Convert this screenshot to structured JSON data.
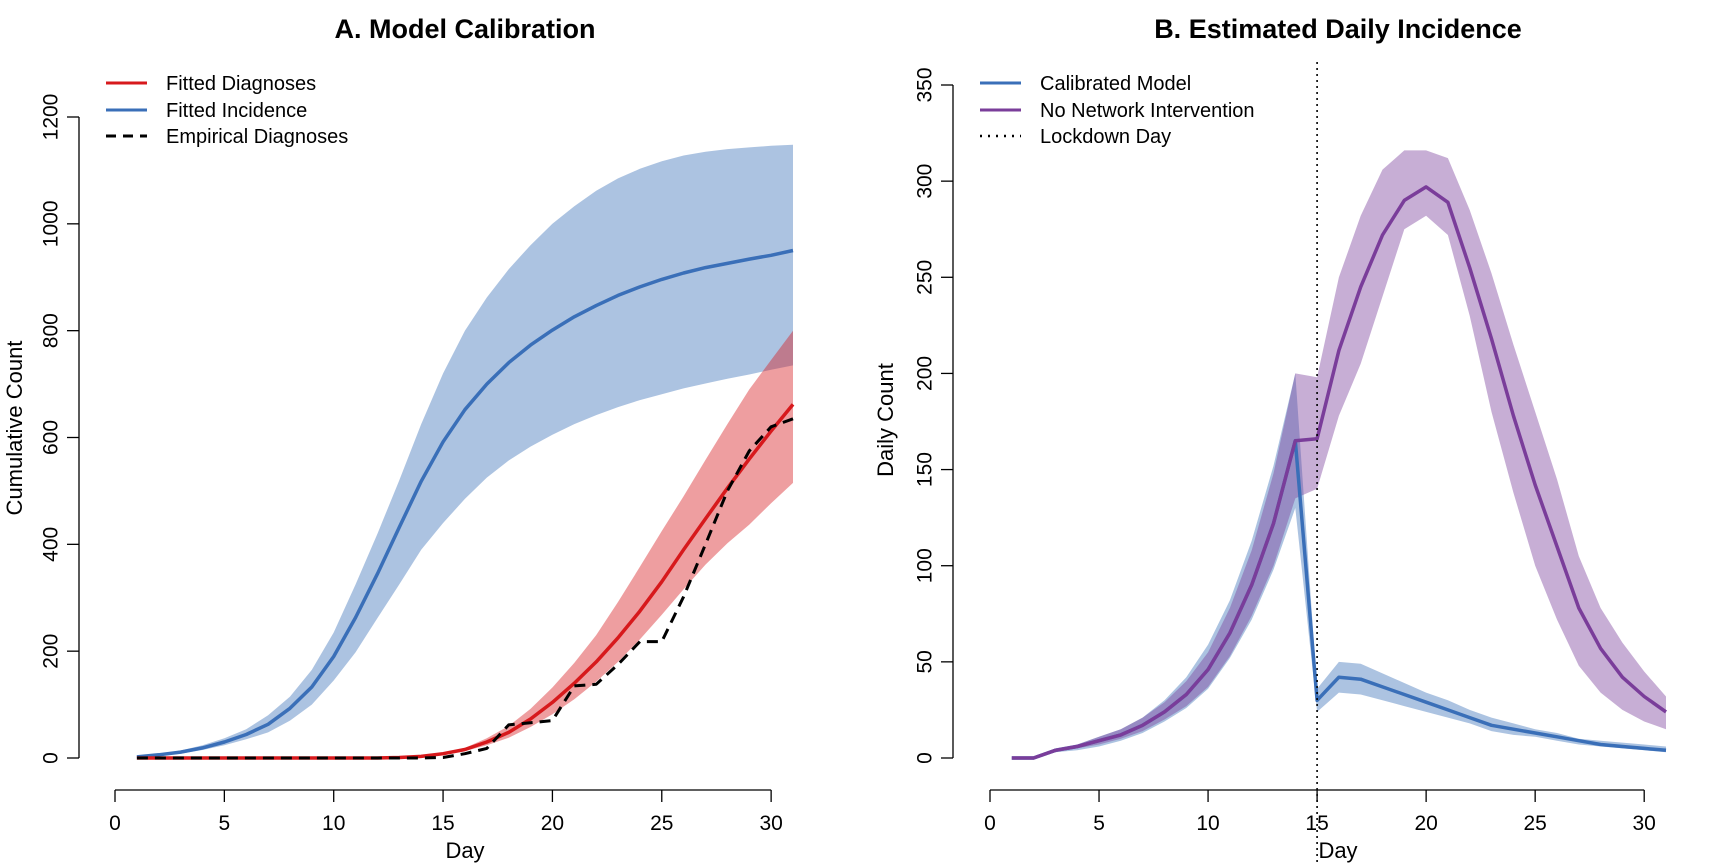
{
  "colors": {
    "diagnoses": "#d7191c",
    "incidence": "#3a6fb8",
    "calibrated": "#3a6fb8",
    "no_intervention": "#7a3d9a",
    "empirical": "#000000"
  },
  "chart_data": [
    {
      "type": "line",
      "title": "A. Model Calibration",
      "xlabel": "Day",
      "ylabel": "Cumulative Count",
      "xlim": [
        0,
        31
      ],
      "ylim": [
        0,
        1200
      ],
      "xticks": [
        0,
        5,
        10,
        15,
        20,
        25,
        30
      ],
      "yticks": [
        0,
        200,
        400,
        600,
        800,
        1000,
        1200
      ],
      "legend_position": "top-left",
      "legend": [
        "Fitted Diagnoses",
        "Fitted Incidence",
        "Empirical Diagnoses"
      ],
      "x": [
        1,
        2,
        3,
        4,
        5,
        6,
        7,
        8,
        9,
        10,
        11,
        12,
        13,
        14,
        15,
        16,
        17,
        18,
        19,
        20,
        21,
        22,
        23,
        24,
        25,
        26,
        27,
        28,
        29,
        30,
        31
      ],
      "series": [
        {
          "name": "Fitted Incidence",
          "color": "#3a6fb8",
          "band": true,
          "values": [
            2,
            6,
            11,
            19,
            30,
            44,
            63,
            93,
            133,
            190,
            263,
            345,
            432,
            518,
            592,
            652,
            700,
            740,
            773,
            801,
            826,
            847,
            866,
            882,
            896,
            908,
            918,
            926,
            934,
            941,
            950
          ],
          "lower": [
            0,
            4,
            8,
            15,
            24,
            35,
            48,
            70,
            100,
            145,
            198,
            262,
            325,
            390,
            440,
            485,
            525,
            557,
            583,
            605,
            625,
            642,
            657,
            670,
            681,
            692,
            701,
            710,
            718,
            727,
            735
          ],
          "upper": [
            3,
            8,
            14,
            24,
            37,
            54,
            80,
            115,
            165,
            235,
            325,
            420,
            520,
            625,
            720,
            800,
            862,
            915,
            960,
            1000,
            1033,
            1062,
            1085,
            1103,
            1117,
            1128,
            1135,
            1140,
            1143,
            1146,
            1148
          ]
        },
        {
          "name": "Fitted Diagnoses",
          "color": "#d7191c",
          "band": true,
          "values": [
            0,
            0,
            0,
            0,
            0,
            0,
            0,
            0,
            0,
            0,
            0,
            0,
            1,
            3,
            8,
            16,
            30,
            48,
            73,
            104,
            140,
            180,
            225,
            275,
            330,
            390,
            448,
            505,
            560,
            612,
            662
          ],
          "lower": [
            0,
            0,
            0,
            0,
            0,
            0,
            0,
            0,
            0,
            0,
            0,
            0,
            1,
            2,
            6,
            13,
            24,
            38,
            58,
            82,
            110,
            143,
            180,
            222,
            268,
            316,
            362,
            402,
            437,
            477,
            515
          ],
          "upper": [
            0,
            0,
            0,
            0,
            0,
            0,
            0,
            0,
            0,
            0,
            0,
            0,
            2,
            4,
            10,
            19,
            37,
            60,
            92,
            132,
            178,
            230,
            292,
            358,
            425,
            490,
            558,
            625,
            690,
            745,
            800
          ]
        },
        {
          "name": "Empirical Diagnoses",
          "color": "#000000",
          "dashed": true,
          "values": [
            0,
            0,
            0,
            0,
            0,
            0,
            0,
            0,
            0,
            0,
            0,
            0,
            0,
            0,
            1,
            8,
            18,
            62,
            66,
            70,
            135,
            138,
            175,
            218,
            218,
            302,
            400,
            500,
            575,
            620,
            635
          ]
        }
      ]
    },
    {
      "type": "line",
      "title": "B. Estimated Daily Incidence",
      "xlabel": "Day",
      "ylabel": "Daily Count",
      "xlim": [
        0,
        31
      ],
      "ylim": [
        0,
        350
      ],
      "xticks": [
        0,
        5,
        10,
        15,
        20,
        25,
        30
      ],
      "yticks": [
        0,
        50,
        100,
        150,
        200,
        250,
        300,
        350
      ],
      "legend_position": "top-left",
      "legend": [
        "Calibrated Model",
        "No Network Intervention",
        "Lockdown Day"
      ],
      "vline_day": 15,
      "x": [
        1,
        2,
        3,
        4,
        5,
        6,
        7,
        8,
        9,
        10,
        11,
        12,
        13,
        14,
        15,
        16,
        17,
        18,
        19,
        20,
        21,
        22,
        23,
        24,
        25,
        26,
        27,
        28,
        29,
        30,
        31
      ],
      "series": [
        {
          "name": "Calibrated Model",
          "color": "#3a6fb8",
          "band": true,
          "values": [
            0,
            0,
            4,
            6,
            9,
            12,
            17,
            24,
            33,
            46,
            65,
            90,
            122,
            165,
            30,
            42,
            41,
            37,
            33,
            29,
            25,
            21,
            17,
            15,
            13,
            11,
            9,
            7,
            6,
            5,
            4
          ],
          "lower": [
            0,
            0,
            3,
            4,
            6,
            9,
            13,
            19,
            26,
            36,
            52,
            72,
            98,
            130,
            24,
            34,
            33,
            30,
            27,
            24,
            21,
            18,
            14,
            12,
            11,
            9,
            7,
            6,
            5,
            4,
            3
          ],
          "upper": [
            0,
            0,
            5,
            7,
            11,
            15,
            21,
            30,
            42,
            59,
            82,
            113,
            152,
            200,
            36,
            50,
            49,
            44,
            39,
            34,
            30,
            25,
            21,
            18,
            15,
            13,
            10,
            9,
            8,
            7,
            6
          ]
        },
        {
          "name": "No Network Intervention",
          "color": "#7a3d9a",
          "band": true,
          "values": [
            0,
            0,
            4,
            6,
            9,
            12,
            17,
            24,
            33,
            46,
            65,
            90,
            122,
            165,
            166,
            212,
            245,
            272,
            290,
            297,
            289,
            255,
            218,
            178,
            142,
            110,
            78,
            57,
            42,
            32,
            24
          ],
          "lower": [
            0,
            0,
            3,
            5,
            7,
            10,
            14,
            20,
            27,
            37,
            53,
            74,
            100,
            135,
            140,
            178,
            205,
            240,
            275,
            282,
            272,
            230,
            180,
            138,
            100,
            72,
            48,
            34,
            25,
            19,
            15
          ],
          "upper": [
            0,
            0,
            5,
            7,
            11,
            15,
            21,
            29,
            40,
            55,
            78,
            108,
            148,
            200,
            198,
            250,
            282,
            306,
            316,
            316,
            312,
            285,
            252,
            215,
            180,
            145,
            105,
            78,
            60,
            45,
            32
          ]
        }
      ]
    }
  ]
}
